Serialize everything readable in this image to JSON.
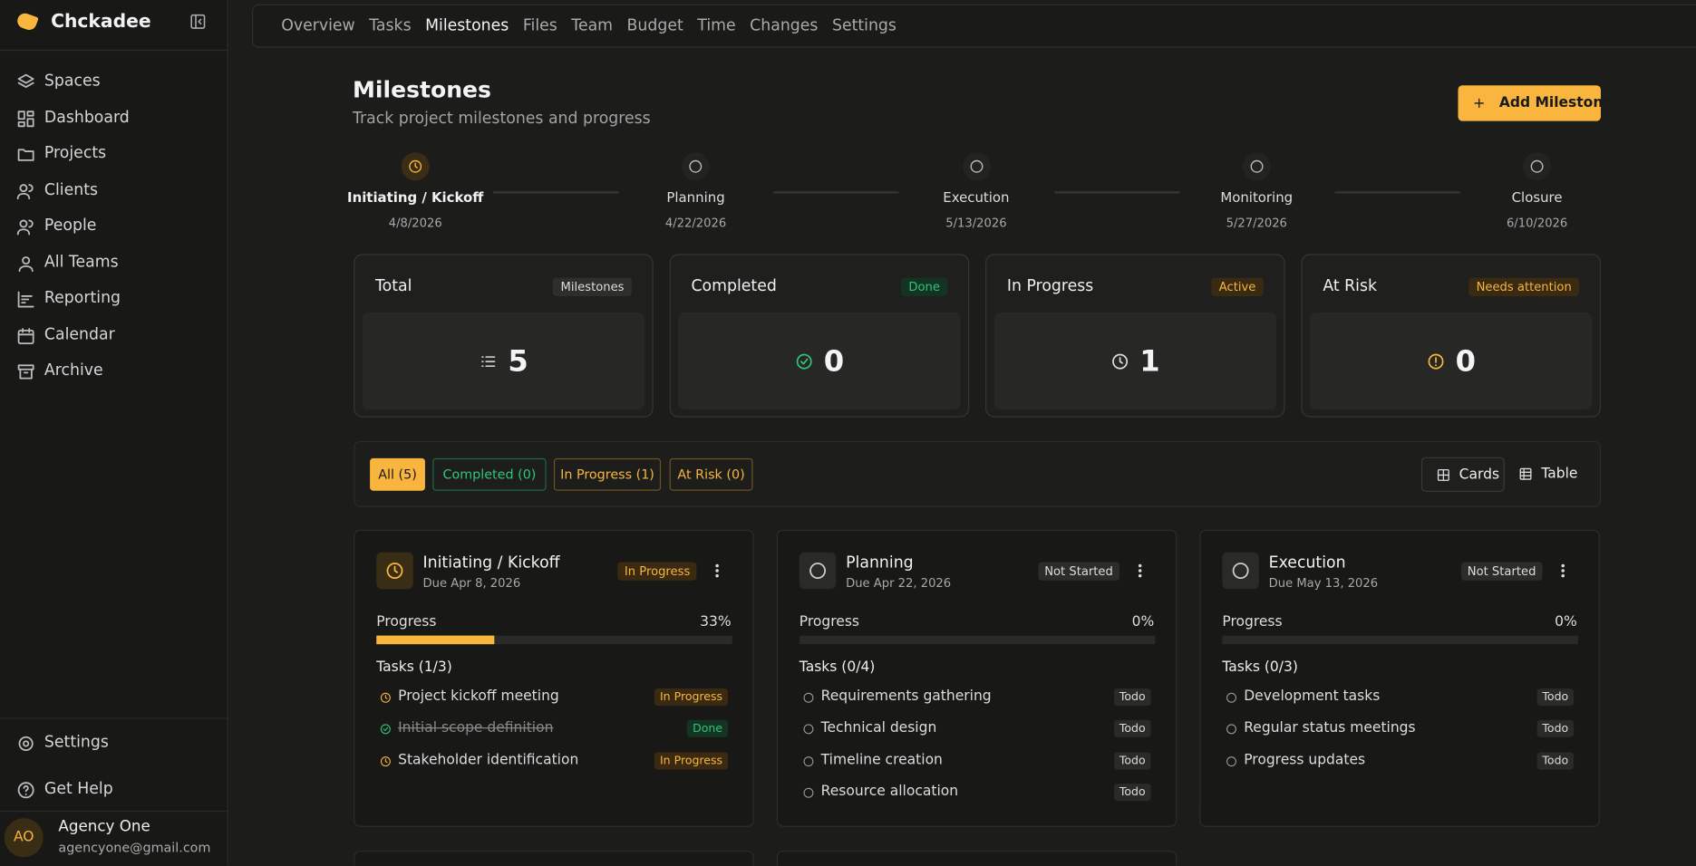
{
  "sidebar": {
    "brand": "Chckadee",
    "nav": [
      "Spaces",
      "Dashboard",
      "Projects",
      "Clients",
      "People",
      "All Teams",
      "Reporting",
      "Calendar",
      "Archive"
    ],
    "footer": [
      "Settings",
      "Get Help"
    ],
    "user": {
      "initials": "AO",
      "name": "Agency One",
      "email": "agencyone@gmail.com"
    }
  },
  "tabs": {
    "items": [
      "Overview",
      "Tasks",
      "Milestones",
      "Files",
      "Team",
      "Budget",
      "Time",
      "Changes",
      "Settings"
    ],
    "active": 2
  },
  "header": {
    "title": "Milestones",
    "subtitle": "Track project milestones and progress",
    "action": "Add Milestone"
  },
  "timeline": [
    {
      "name": "Initiating / Kickoff",
      "date": "4/8/2026"
    },
    {
      "name": "Planning",
      "date": "4/22/2026"
    },
    {
      "name": "Execution",
      "date": "5/13/2026"
    },
    {
      "name": "Monitoring",
      "date": "5/27/2026"
    },
    {
      "name": "Closure",
      "date": "6/10/2026"
    }
  ],
  "stats": [
    {
      "title": "Total",
      "badge": "Milestones",
      "value": 5
    },
    {
      "title": "Completed",
      "badge": "Done",
      "value": 0
    },
    {
      "title": "In Progress",
      "badge": "Active",
      "value": 1
    },
    {
      "title": "At Risk",
      "badge": "Needs attention",
      "value": 0
    }
  ],
  "filters": [
    "All (5)",
    "Completed (0)",
    "In Progress (1)",
    "At Risk (0)"
  ],
  "views": [
    "Cards",
    "Table"
  ],
  "cards": [
    {
      "title": "Initiating / Kickoff",
      "due": "Due Apr 8, 2026",
      "status": "In Progress",
      "progress_label": "Progress",
      "progress": 33,
      "progress_text": "33%",
      "tasks_heading": "Tasks (1/3)",
      "tasks": [
        {
          "name": "Project kickoff meeting",
          "status": "In Progress"
        },
        {
          "name": "Initial scope definition",
          "status": "Done"
        },
        {
          "name": "Stakeholder identification",
          "status": "In Progress"
        }
      ]
    },
    {
      "title": "Planning",
      "due": "Due Apr 22, 2026",
      "status": "Not Started",
      "progress_label": "Progress",
      "progress": 0,
      "progress_text": "0%",
      "tasks_heading": "Tasks (0/4)",
      "tasks": [
        {
          "name": "Requirements gathering",
          "status": "Todo"
        },
        {
          "name": "Technical design",
          "status": "Todo"
        },
        {
          "name": "Timeline creation",
          "status": "Todo"
        },
        {
          "name": "Resource allocation",
          "status": "Todo"
        }
      ]
    },
    {
      "title": "Execution",
      "due": "Due May 13, 2026",
      "status": "Not Started",
      "progress_label": "Progress",
      "progress": 0,
      "progress_text": "0%",
      "tasks_heading": "Tasks (0/3)",
      "tasks": [
        {
          "name": "Development tasks",
          "status": "Todo"
        },
        {
          "name": "Regular status meetings",
          "status": "Todo"
        },
        {
          "name": "Progress updates",
          "status": "Todo"
        }
      ]
    }
  ]
}
